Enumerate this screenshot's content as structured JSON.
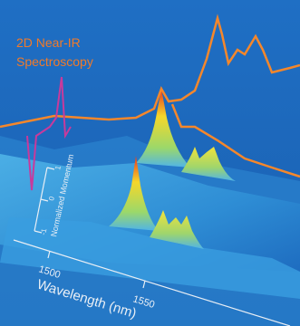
{
  "title": {
    "line1": "2D Near-IR",
    "line2": "Spectroscopy"
  },
  "momentum_axis": {
    "label": "Normalized Momentum",
    "ticks": [
      1,
      0,
      -1
    ]
  },
  "wavelength_axis": {
    "label": "Wavelength (nm)",
    "ticks": [
      1500,
      1550
    ]
  }
}
